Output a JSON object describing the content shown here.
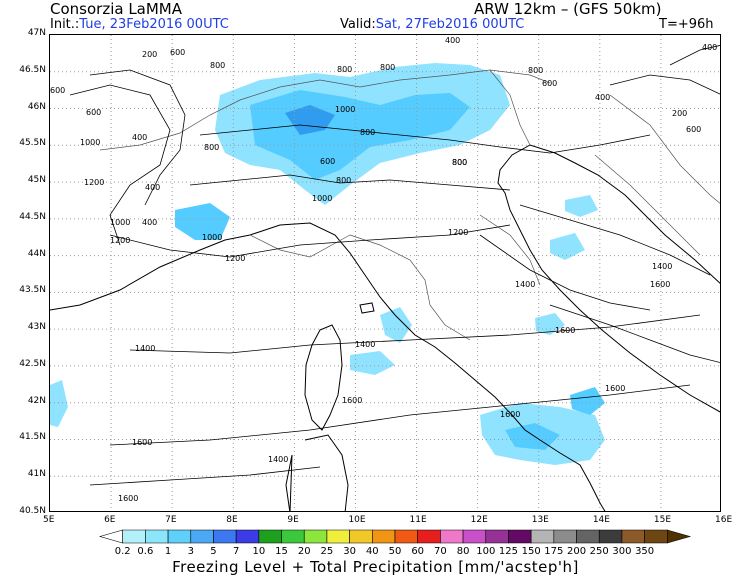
{
  "header": {
    "title": "Consorzia LaMMA",
    "model": "ARW 12km – (GFS 50km)",
    "init_label": "Init.:",
    "init_value": "Tue, 23Feb2016 00UTC",
    "valid_label": "Valid:",
    "valid_value": "Sat, 27Feb2016 00UTC",
    "forecast_step": "T=+96h"
  },
  "map": {
    "lat_ticks": [
      "47N",
      "46.5N",
      "46N",
      "45.5N",
      "45N",
      "44.5N",
      "44N",
      "43.5N",
      "43N",
      "42.5N",
      "42N",
      "41.5N",
      "41N",
      "40.5N"
    ],
    "lon_ticks": [
      "5E",
      "6E",
      "7E",
      "8E",
      "9E",
      "10E",
      "11E",
      "12E",
      "13E",
      "14E",
      "15E",
      "16E"
    ],
    "contour_labels": [
      "400",
      "600",
      "800",
      "1000",
      "1200",
      "1400",
      "1600",
      "200"
    ],
    "colors": {
      "precip_light": "#8fe3ff",
      "precip_mid": "#55ccff",
      "precip_dark": "#2f9cf0",
      "grid": "#9a9a9a",
      "coast": "#000000",
      "contour": "#000000"
    }
  },
  "colorbar": {
    "labels": [
      "0.2",
      "0.6",
      "1",
      "3",
      "5",
      "7",
      "10",
      "15",
      "20",
      "25",
      "30",
      "40",
      "50",
      "60",
      "70",
      "80",
      "100",
      "125",
      "150",
      "175",
      "200",
      "250",
      "300",
      "350"
    ],
    "colors": [
      "#ffffff",
      "#b4f0fa",
      "#8ce6fa",
      "#5fd0fa",
      "#4aa8f5",
      "#3c78f0",
      "#3c3ce6",
      "#1ea01e",
      "#3cc83c",
      "#8ce63c",
      "#f0f03c",
      "#f0c828",
      "#f09614",
      "#f05a14",
      "#e61e1e",
      "#f078c8",
      "#c850c8",
      "#963296",
      "#640a64",
      "#b4b4b4",
      "#8c8c8c",
      "#646464",
      "#3c3c3c",
      "#8c5a28",
      "#6e4614",
      "#503200"
    ],
    "caption": "Freezing Level + Total Precipitation [mm/'acstep'h]"
  }
}
